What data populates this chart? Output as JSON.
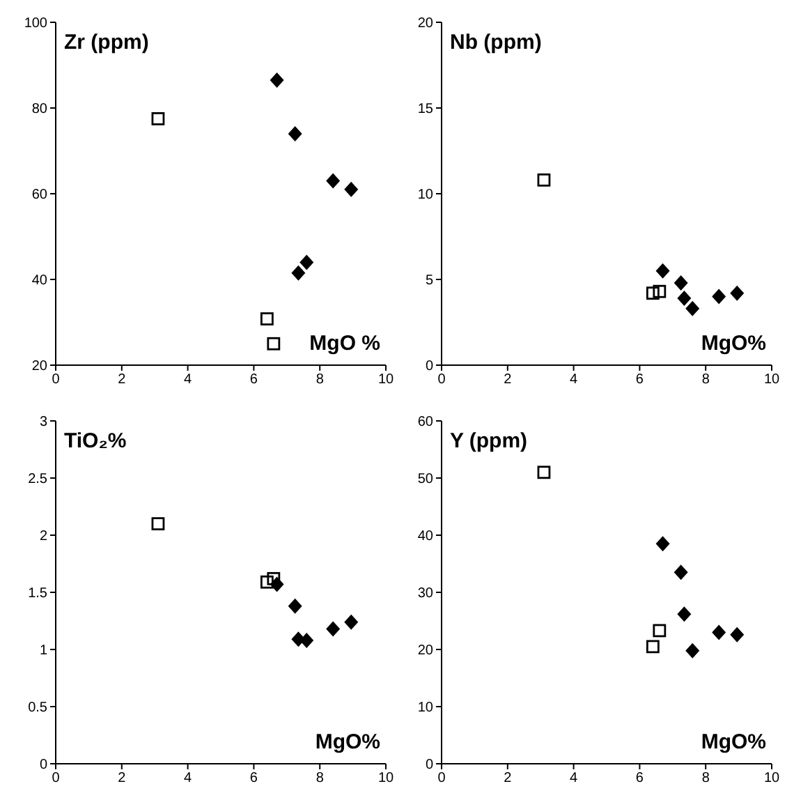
{
  "chart_data": [
    {
      "type": "scatter",
      "ylabel": "Zr (ppm)",
      "xlabel": "MgO %",
      "xlim": [
        0,
        10
      ],
      "xticks": [
        0,
        2,
        4,
        6,
        8,
        10
      ],
      "ylim": [
        20,
        100
      ],
      "yticks": [
        20,
        40,
        60,
        80,
        100
      ],
      "grid": false,
      "legend": false,
      "series": [
        {
          "color": "#000000",
          "marker": "square",
          "x": [
            3.1,
            6.4,
            6.6
          ],
          "values": [
            77.5,
            30.8,
            25
          ]
        },
        {
          "color": "#000000",
          "marker": "diamond",
          "x": [
            6.7,
            7.25,
            7.35,
            7.6,
            8.4,
            8.95
          ],
          "values": [
            86.5,
            74,
            41.5,
            44,
            63,
            61
          ]
        }
      ]
    },
    {
      "type": "scatter",
      "ylabel": "Nb (ppm)",
      "xlabel": "MgO%",
      "xlim": [
        0,
        10
      ],
      "xticks": [
        0,
        2,
        4,
        6,
        8,
        10
      ],
      "ylim": [
        0,
        20
      ],
      "yticks": [
        0,
        5,
        10,
        15,
        20
      ],
      "grid": false,
      "legend": false,
      "series": [
        {
          "color": "#000000",
          "marker": "square",
          "x": [
            3.1,
            6.4,
            6.6
          ],
          "values": [
            10.8,
            4.2,
            4.3
          ]
        },
        {
          "color": "#000000",
          "marker": "diamond",
          "x": [
            6.7,
            7.25,
            7.35,
            7.6,
            8.4,
            8.95
          ],
          "values": [
            5.5,
            4.8,
            3.9,
            3.3,
            4.0,
            4.2
          ]
        }
      ]
    },
    {
      "type": "scatter",
      "ylabel": "TiO₂%",
      "xlabel": "MgO%",
      "xlim": [
        0,
        10
      ],
      "xticks": [
        0,
        2,
        4,
        6,
        8,
        10
      ],
      "ylim": [
        0,
        3
      ],
      "yticks": [
        0,
        0.5,
        1,
        1.5,
        2,
        2.5,
        3
      ],
      "grid": false,
      "legend": false,
      "series": [
        {
          "color": "#000000",
          "marker": "square",
          "x": [
            3.1,
            6.4,
            6.6
          ],
          "values": [
            2.1,
            1.59,
            1.62
          ]
        },
        {
          "color": "#000000",
          "marker": "diamond",
          "x": [
            6.7,
            7.25,
            7.35,
            7.6,
            8.4,
            8.95
          ],
          "values": [
            1.57,
            1.38,
            1.09,
            1.08,
            1.18,
            1.24
          ]
        }
      ]
    },
    {
      "type": "scatter",
      "ylabel": "Y (ppm)",
      "xlabel": "MgO%",
      "xlim": [
        0,
        10
      ],
      "xticks": [
        0,
        2,
        4,
        6,
        8,
        10
      ],
      "ylim": [
        0,
        60
      ],
      "yticks": [
        0,
        10,
        20,
        30,
        40,
        50,
        60
      ],
      "grid": false,
      "legend": false,
      "series": [
        {
          "color": "#000000",
          "marker": "square",
          "x": [
            3.1,
            6.4,
            6.6
          ],
          "values": [
            51,
            20.5,
            23.3
          ]
        },
        {
          "color": "#000000",
          "marker": "diamond",
          "x": [
            6.7,
            7.25,
            7.35,
            7.6,
            8.4,
            8.95
          ],
          "values": [
            38.5,
            33.5,
            26.2,
            19.8,
            23,
            22.6
          ]
        }
      ]
    }
  ]
}
